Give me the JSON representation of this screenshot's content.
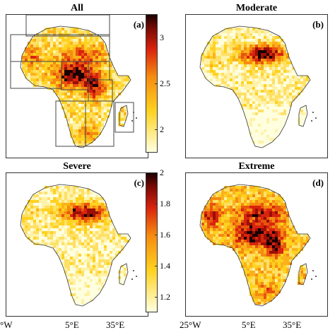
{
  "panels": [
    {
      "id": "all",
      "title": "All",
      "label": "(a)"
    },
    {
      "id": "moderate",
      "title": "Moderate",
      "label": "(b)"
    },
    {
      "id": "severe",
      "title": "Severe",
      "label": "(c)"
    },
    {
      "id": "extreme",
      "title": "Extreme",
      "label": "(d)"
    }
  ],
  "colorbar_top": {
    "ticks": [
      "3",
      "2.5",
      "2"
    ],
    "min": 1.75,
    "max": 3.25,
    "values": [
      3,
      2.5,
      2
    ]
  },
  "colorbar_bottom": {
    "ticks": [
      "2",
      "1.8",
      "1.6",
      "1.4",
      "1.2"
    ],
    "min": 1.1,
    "max": 2.0,
    "values": [
      2,
      1.8,
      1.6,
      1.4,
      1.2
    ]
  },
  "x_axis_left": {
    "labels": [
      "°W",
      "5°E",
      "35°E"
    ]
  },
  "x_axis_right": {
    "labels": [
      "25°W",
      "5°E",
      "35°E"
    ]
  },
  "colors": {
    "low": "#ffffe0",
    "mid": "#ffd21f",
    "high1": "#f58b10",
    "high2": "#d9230e",
    "max": "#1a0000"
  }
}
